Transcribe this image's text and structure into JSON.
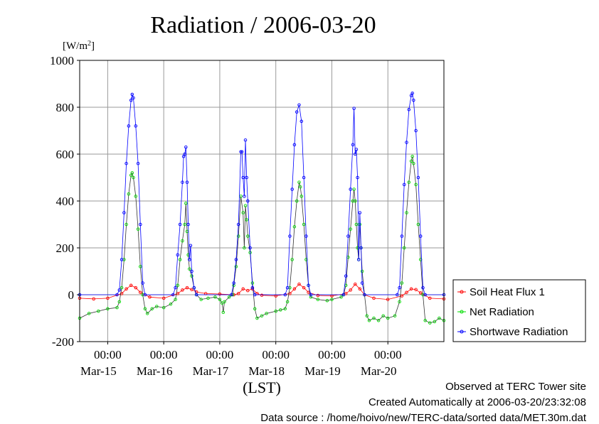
{
  "chart_data": {
    "type": "line",
    "title": "Radiation / 2006-03-20",
    "ylabel": "[W/m2]",
    "xlabel": "(LST)",
    "ylim": [
      -200,
      1000
    ],
    "yticks": [
      -200,
      0,
      200,
      400,
      600,
      800,
      1000
    ],
    "ytick_labels": [
      "-200",
      "0",
      "200",
      "400",
      "600",
      "800",
      "1000"
    ],
    "xlim": [
      "2006-03-14 12:00",
      "2006-03-20 24:00"
    ],
    "xticks": [
      {
        "time": "2006-03-15 00:00",
        "label": "00:00",
        "date": "Mar-15"
      },
      {
        "time": "2006-03-16 00:00",
        "label": "00:00",
        "date": "Mar-16"
      },
      {
        "time": "2006-03-17 00:00",
        "label": "00:00",
        "date": "Mar-17"
      },
      {
        "time": "2006-03-18 00:00",
        "label": "00:00",
        "date": "Mar-18"
      },
      {
        "time": "2006-03-19 00:00",
        "label": "00:00",
        "date": "Mar-19"
      },
      {
        "time": "2006-03-20 00:00",
        "label": "00:00",
        "date": "Mar-20"
      }
    ],
    "grid": true,
    "legend_position": "right",
    "series": [
      {
        "name": "Soil Heat Flux 1",
        "color": "#ff0000",
        "marker": "circle",
        "points": [
          [
            "2006-03-14 12:00",
            -15
          ],
          [
            "2006-03-14 18:00",
            -18
          ],
          [
            "2006-03-15 00:00",
            -15
          ],
          [
            "2006-03-15 06:00",
            5
          ],
          [
            "2006-03-15 08:00",
            25
          ],
          [
            "2006-03-15 10:00",
            40
          ],
          [
            "2006-03-15 12:00",
            30
          ],
          [
            "2006-03-15 14:00",
            10
          ],
          [
            "2006-03-15 18:00",
            -10
          ],
          [
            "2006-03-16 00:00",
            -15
          ],
          [
            "2006-03-16 06:00",
            5
          ],
          [
            "2006-03-16 08:00",
            20
          ],
          [
            "2006-03-16 10:00",
            30
          ],
          [
            "2006-03-16 12:00",
            22
          ],
          [
            "2006-03-16 14:00",
            12
          ],
          [
            "2006-03-16 18:00",
            5
          ],
          [
            "2006-03-17 00:00",
            3
          ],
          [
            "2006-03-17 06:00",
            0
          ],
          [
            "2006-03-17 08:00",
            5
          ],
          [
            "2006-03-17 10:00",
            25
          ],
          [
            "2006-03-17 12:00",
            18
          ],
          [
            "2006-03-17 14:00",
            25
          ],
          [
            "2006-03-17 16:00",
            5
          ],
          [
            "2006-03-17 18:00",
            -2
          ],
          [
            "2006-03-18 00:00",
            -5
          ],
          [
            "2006-03-18 06:00",
            5
          ],
          [
            "2006-03-18 08:00",
            25
          ],
          [
            "2006-03-18 10:00",
            45
          ],
          [
            "2006-03-18 12:00",
            30
          ],
          [
            "2006-03-18 14:00",
            10
          ],
          [
            "2006-03-18 18:00",
            -3
          ],
          [
            "2006-03-19 00:00",
            -5
          ],
          [
            "2006-03-19 06:00",
            5
          ],
          [
            "2006-03-19 08:00",
            20
          ],
          [
            "2006-03-19 10:00",
            45
          ],
          [
            "2006-03-19 12:00",
            25
          ],
          [
            "2006-03-19 14:00",
            0
          ],
          [
            "2006-03-19 18:00",
            -15
          ],
          [
            "2006-03-20 00:00",
            -20
          ],
          [
            "2006-03-20 06:00",
            -5
          ],
          [
            "2006-03-20 08:00",
            10
          ],
          [
            "2006-03-20 10:00",
            25
          ],
          [
            "2006-03-20 12:00",
            22
          ],
          [
            "2006-03-20 14:00",
            8
          ],
          [
            "2006-03-20 18:00",
            -15
          ],
          [
            "2006-03-20 24:00",
            -18
          ]
        ]
      },
      {
        "name": "Net Radiation",
        "color": "#00dd00",
        "marker": "circle",
        "points": [
          [
            "2006-03-14 12:00",
            -100
          ],
          [
            "2006-03-14 16:00",
            -80
          ],
          [
            "2006-03-14 20:00",
            -70
          ],
          [
            "2006-03-15 00:00",
            -60
          ],
          [
            "2006-03-15 04:00",
            -55
          ],
          [
            "2006-03-15 05:00",
            -30
          ],
          [
            "2006-03-15 06:00",
            30
          ],
          [
            "2006-03-15 07:00",
            150
          ],
          [
            "2006-03-15 08:00",
            300
          ],
          [
            "2006-03-15 09:00",
            430
          ],
          [
            "2006-03-15 10:00",
            510
          ],
          [
            "2006-03-15 10:30",
            520
          ],
          [
            "2006-03-15 11:00",
            500
          ],
          [
            "2006-03-15 12:00",
            420
          ],
          [
            "2006-03-15 13:00",
            280
          ],
          [
            "2006-03-15 14:00",
            120
          ],
          [
            "2006-03-15 15:00",
            0
          ],
          [
            "2006-03-15 16:00",
            -60
          ],
          [
            "2006-03-15 17:00",
            -80
          ],
          [
            "2006-03-15 19:00",
            -60
          ],
          [
            "2006-03-15 21:00",
            -50
          ],
          [
            "2006-03-16 00:00",
            -55
          ],
          [
            "2006-03-16 03:00",
            -40
          ],
          [
            "2006-03-16 05:00",
            -20
          ],
          [
            "2006-03-16 06:00",
            40
          ],
          [
            "2006-03-16 07:00",
            150
          ],
          [
            "2006-03-16 08:00",
            230
          ],
          [
            "2006-03-16 09:00",
            300
          ],
          [
            "2006-03-16 09:30",
            390
          ],
          [
            "2006-03-16 10:00",
            270
          ],
          [
            "2006-03-16 10:30",
            170
          ],
          [
            "2006-03-16 11:00",
            110
          ],
          [
            "2006-03-16 12:00",
            80
          ],
          [
            "2006-03-16 13:00",
            30
          ],
          [
            "2006-03-16 14:00",
            0
          ],
          [
            "2006-03-16 16:00",
            -20
          ],
          [
            "2006-03-16 19:00",
            -15
          ],
          [
            "2006-03-16 22:00",
            -10
          ],
          [
            "2006-03-17 00:00",
            -20
          ],
          [
            "2006-03-17 01:00",
            -35
          ],
          [
            "2006-03-17 01:30",
            -75
          ],
          [
            "2006-03-17 02:00",
            -30
          ],
          [
            "2006-03-17 04:00",
            -10
          ],
          [
            "2006-03-17 05:30",
            0
          ],
          [
            "2006-03-17 06:00",
            40
          ],
          [
            "2006-03-17 07:00",
            120
          ],
          [
            "2006-03-17 08:00",
            250
          ],
          [
            "2006-03-17 09:00",
            420
          ],
          [
            "2006-03-17 10:00",
            350
          ],
          [
            "2006-03-17 10:30",
            200
          ],
          [
            "2006-03-17 11:00",
            380
          ],
          [
            "2006-03-17 11:30",
            320
          ],
          [
            "2006-03-17 12:00",
            250
          ],
          [
            "2006-03-17 13:00",
            180
          ],
          [
            "2006-03-17 14:00",
            50
          ],
          [
            "2006-03-17 15:00",
            -60
          ],
          [
            "2006-03-17 16:00",
            -100
          ],
          [
            "2006-03-17 18:00",
            -90
          ],
          [
            "2006-03-17 20:00",
            -80
          ],
          [
            "2006-03-18 00:00",
            -70
          ],
          [
            "2006-03-18 02:00",
            -65
          ],
          [
            "2006-03-18 04:00",
            -60
          ],
          [
            "2006-03-18 05:00",
            -30
          ],
          [
            "2006-03-18 06:00",
            30
          ],
          [
            "2006-03-18 07:00",
            150
          ],
          [
            "2006-03-18 08:00",
            290
          ],
          [
            "2006-03-18 09:00",
            400
          ],
          [
            "2006-03-18 10:00",
            480
          ],
          [
            "2006-03-18 10:30",
            460
          ],
          [
            "2006-03-18 11:00",
            420
          ],
          [
            "2006-03-18 12:00",
            300
          ],
          [
            "2006-03-18 13:00",
            150
          ],
          [
            "2006-03-18 14:00",
            40
          ],
          [
            "2006-03-18 15:00",
            -10
          ],
          [
            "2006-03-18 18:00",
            -20
          ],
          [
            "2006-03-18 22:00",
            -25
          ],
          [
            "2006-03-19 00:00",
            -20
          ],
          [
            "2006-03-19 04:00",
            -10
          ],
          [
            "2006-03-19 05:00",
            0
          ],
          [
            "2006-03-19 06:00",
            40
          ],
          [
            "2006-03-19 07:00",
            160
          ],
          [
            "2006-03-19 08:00",
            280
          ],
          [
            "2006-03-19 09:00",
            400
          ],
          [
            "2006-03-19 09:30",
            450
          ],
          [
            "2006-03-19 10:00",
            400
          ],
          [
            "2006-03-19 10:30",
            300
          ],
          [
            "2006-03-19 11:00",
            200
          ],
          [
            "2006-03-19 11:30",
            150
          ],
          [
            "2006-03-19 12:00",
            300
          ],
          [
            "2006-03-19 12:30",
            200
          ],
          [
            "2006-03-19 13:00",
            100
          ],
          [
            "2006-03-19 14:00",
            0
          ],
          [
            "2006-03-19 15:00",
            -90
          ],
          [
            "2006-03-19 16:00",
            -110
          ],
          [
            "2006-03-19 18:00",
            -100
          ],
          [
            "2006-03-19 20:00",
            -110
          ],
          [
            "2006-03-19 22:00",
            -90
          ],
          [
            "2006-03-20 00:00",
            -100
          ],
          [
            "2006-03-20 03:00",
            -90
          ],
          [
            "2006-03-20 05:00",
            -30
          ],
          [
            "2006-03-20 06:00",
            50
          ],
          [
            "2006-03-20 07:00",
            200
          ],
          [
            "2006-03-20 08:00",
            350
          ],
          [
            "2006-03-20 09:00",
            480
          ],
          [
            "2006-03-20 10:00",
            570
          ],
          [
            "2006-03-20 10:30",
            590
          ],
          [
            "2006-03-20 11:00",
            560
          ],
          [
            "2006-03-20 12:00",
            470
          ],
          [
            "2006-03-20 13:00",
            300
          ],
          [
            "2006-03-20 14:00",
            150
          ],
          [
            "2006-03-20 15:00",
            0
          ],
          [
            "2006-03-20 16:00",
            -110
          ],
          [
            "2006-03-20 18:00",
            -120
          ],
          [
            "2006-03-20 20:00",
            -115
          ],
          [
            "2006-03-20 22:00",
            -100
          ],
          [
            "2006-03-20 24:00",
            -110
          ]
        ]
      },
      {
        "name": "Shortwave Radiation",
        "color": "#0000ff",
        "marker": "circle",
        "points": [
          [
            "2006-03-14 12:00",
            0
          ],
          [
            "2006-03-15 04:00",
            0
          ],
          [
            "2006-03-15 05:00",
            20
          ],
          [
            "2006-03-15 06:00",
            150
          ],
          [
            "2006-03-15 07:00",
            350
          ],
          [
            "2006-03-15 08:00",
            560
          ],
          [
            "2006-03-15 09:00",
            720
          ],
          [
            "2006-03-15 10:00",
            830
          ],
          [
            "2006-03-15 10:30",
            855
          ],
          [
            "2006-03-15 11:00",
            840
          ],
          [
            "2006-03-15 12:00",
            720
          ],
          [
            "2006-03-15 13:00",
            560
          ],
          [
            "2006-03-15 14:00",
            300
          ],
          [
            "2006-03-15 15:00",
            50
          ],
          [
            "2006-03-15 16:00",
            0
          ],
          [
            "2006-03-16 04:00",
            0
          ],
          [
            "2006-03-16 05:00",
            30
          ],
          [
            "2006-03-16 06:00",
            170
          ],
          [
            "2006-03-16 07:00",
            300
          ],
          [
            "2006-03-16 08:00",
            480
          ],
          [
            "2006-03-16 08:30",
            590
          ],
          [
            "2006-03-16 09:00",
            600
          ],
          [
            "2006-03-16 09:30",
            630
          ],
          [
            "2006-03-16 10:00",
            480
          ],
          [
            "2006-03-16 10:30",
            300
          ],
          [
            "2006-03-16 11:00",
            150
          ],
          [
            "2006-03-16 11:30",
            210
          ],
          [
            "2006-03-16 12:00",
            100
          ],
          [
            "2006-03-16 13:00",
            30
          ],
          [
            "2006-03-16 14:00",
            0
          ],
          [
            "2006-03-17 05:00",
            0
          ],
          [
            "2006-03-17 06:00",
            50
          ],
          [
            "2006-03-17 07:00",
            150
          ],
          [
            "2006-03-17 08:00",
            300
          ],
          [
            "2006-03-17 09:00",
            610
          ],
          [
            "2006-03-17 09:30",
            610
          ],
          [
            "2006-03-17 10:00",
            500
          ],
          [
            "2006-03-17 10:30",
            420
          ],
          [
            "2006-03-17 11:00",
            660
          ],
          [
            "2006-03-17 11:30",
            500
          ],
          [
            "2006-03-17 12:00",
            400
          ],
          [
            "2006-03-17 13:00",
            200
          ],
          [
            "2006-03-17 14:00",
            30
          ],
          [
            "2006-03-17 15:00",
            0
          ],
          [
            "2006-03-18 04:00",
            0
          ],
          [
            "2006-03-18 05:00",
            30
          ],
          [
            "2006-03-18 06:00",
            250
          ],
          [
            "2006-03-18 07:00",
            450
          ],
          [
            "2006-03-18 08:00",
            640
          ],
          [
            "2006-03-18 09:00",
            780
          ],
          [
            "2006-03-18 10:00",
            810
          ],
          [
            "2006-03-18 11:00",
            740
          ],
          [
            "2006-03-18 12:00",
            500
          ],
          [
            "2006-03-18 13:00",
            250
          ],
          [
            "2006-03-18 14:00",
            40
          ],
          [
            "2006-03-18 15:00",
            0
          ],
          [
            "2006-03-19 05:00",
            0
          ],
          [
            "2006-03-19 06:00",
            80
          ],
          [
            "2006-03-19 07:00",
            250
          ],
          [
            "2006-03-19 08:00",
            450
          ],
          [
            "2006-03-19 09:00",
            640
          ],
          [
            "2006-03-19 09:30",
            795
          ],
          [
            "2006-03-19 10:00",
            600
          ],
          [
            "2006-03-19 10:30",
            620
          ],
          [
            "2006-03-19 11:00",
            500
          ],
          [
            "2006-03-19 11:30",
            150
          ],
          [
            "2006-03-19 12:00",
            350
          ],
          [
            "2006-03-19 12:30",
            200
          ],
          [
            "2006-03-19 13:00",
            50
          ],
          [
            "2006-03-19 14:00",
            0
          ],
          [
            "2006-03-20 04:00",
            0
          ],
          [
            "2006-03-20 05:00",
            30
          ],
          [
            "2006-03-20 06:00",
            250
          ],
          [
            "2006-03-20 07:00",
            470
          ],
          [
            "2006-03-20 08:00",
            650
          ],
          [
            "2006-03-20 09:00",
            790
          ],
          [
            "2006-03-20 10:00",
            850
          ],
          [
            "2006-03-20 10:30",
            860
          ],
          [
            "2006-03-20 11:00",
            830
          ],
          [
            "2006-03-20 12:00",
            700
          ],
          [
            "2006-03-20 13:00",
            500
          ],
          [
            "2006-03-20 14:00",
            250
          ],
          [
            "2006-03-20 15:00",
            30
          ],
          [
            "2006-03-20 16:00",
            0
          ],
          [
            "2006-03-20 24:00",
            0
          ]
        ]
      }
    ]
  },
  "footer": {
    "observed": "Observed at TERC Tower site",
    "created": "Created Automatically at 2006-03-20/23:32:08",
    "source": "Data source : /home/hoivo/new/TERC-data/sorted  data/MET.30m.dat"
  }
}
